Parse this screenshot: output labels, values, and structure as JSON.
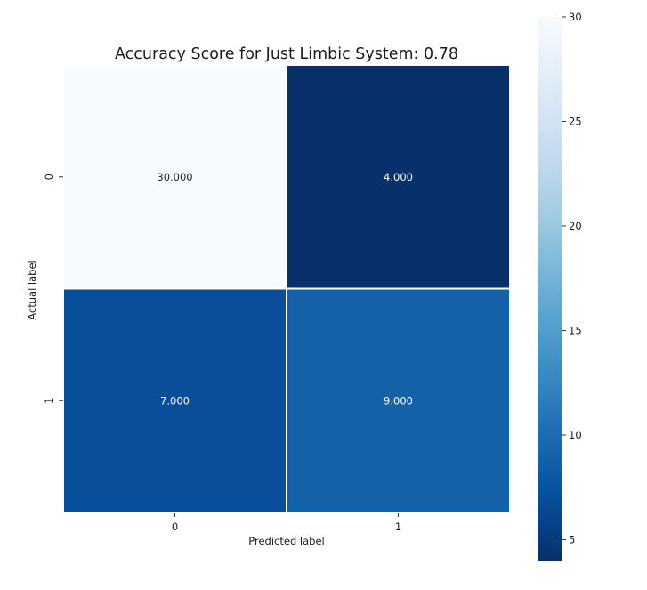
{
  "chart_data": {
    "type": "heatmap",
    "title": "Accuracy Score for Just Limbic System: 0.78",
    "xlabel": "Predicted label",
    "ylabel": "Actual label",
    "x_categories": [
      "0",
      "1"
    ],
    "y_categories": [
      "0",
      "1"
    ],
    "values": [
      [
        30,
        4
      ],
      [
        7,
        9
      ]
    ],
    "cell_labels": [
      [
        "30.000",
        "4.000"
      ],
      [
        "7.000",
        "9.000"
      ]
    ],
    "colormap": "Blues_r",
    "colorbar": {
      "min": 4,
      "max": 30,
      "ticks": [
        5,
        10,
        15,
        20,
        25,
        30
      ],
      "tick_labels": [
        "5",
        "10",
        "15",
        "20",
        "25",
        "30"
      ]
    },
    "colors": {
      "low": "#08306b",
      "high": "#f7fbff",
      "cell_border": "#ffffff",
      "label_on_light": "#262626",
      "label_on_dark": "#ffffff"
    }
  }
}
